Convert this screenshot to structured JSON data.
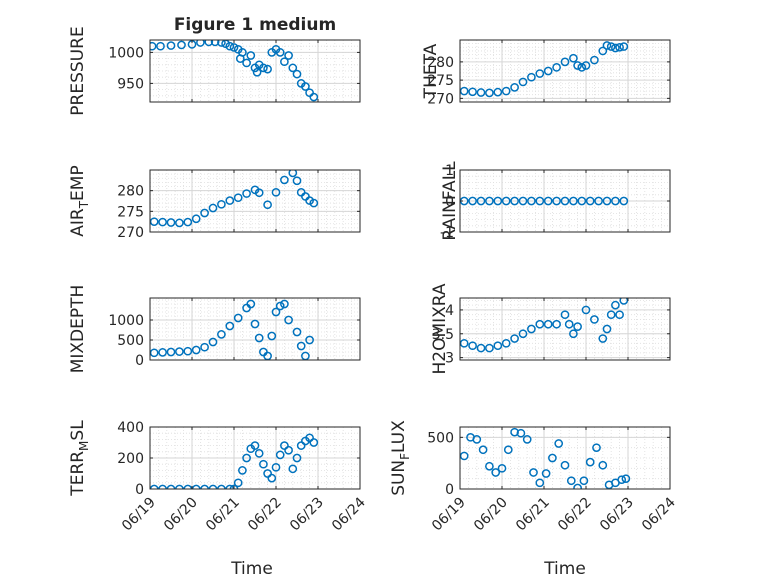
{
  "figure": {
    "title": "Figure 1 medium",
    "marker_color": "#0072BD"
  },
  "chart_data": [
    {
      "type": "scatter",
      "title": "Figure 1 medium",
      "ylabel": "PRESSURE",
      "xlabel": "",
      "xlim": [
        0,
        5
      ],
      "ylim": [
        920,
        1020
      ],
      "yticks": [
        950,
        1000
      ],
      "xticklabels": [
        "06/19",
        "06/20",
        "06/21",
        "06/22",
        "06/23",
        "06/24"
      ],
      "xlabel_visible": false,
      "series": [
        {
          "x": [
            0.05,
            0.25,
            0.5,
            0.75,
            1.0,
            1.2,
            1.4,
            1.55,
            1.7,
            1.8,
            1.9,
            2.0,
            2.1,
            2.15,
            2.2,
            2.3,
            2.4,
            2.5,
            2.55,
            2.6,
            2.7,
            2.8,
            2.9,
            3.0,
            3.1,
            3.2,
            3.3,
            3.4,
            3.5,
            3.6,
            3.7,
            3.8,
            3.9
          ],
          "y": [
            1010,
            1010,
            1011,
            1012,
            1013,
            1016,
            1017,
            1017,
            1016,
            1014,
            1010,
            1008,
            1005,
            990,
            1000,
            983,
            995,
            975,
            968,
            980,
            975,
            973,
            1000,
            1005,
            1000,
            985,
            995,
            975,
            965,
            950,
            945,
            935,
            928
          ]
        }
      ]
    },
    {
      "type": "scatter",
      "title": "",
      "ylabel": "THETA",
      "xlabel": "",
      "xlim": [
        0,
        5
      ],
      "ylim": [
        269,
        286
      ],
      "yticks": [
        270,
        275,
        280
      ],
      "xticklabels": [
        "06/19",
        "06/20",
        "06/21",
        "06/22",
        "06/23",
        "06/24"
      ],
      "xlabel_visible": false,
      "series": [
        {
          "x": [
            0.1,
            0.3,
            0.5,
            0.7,
            0.9,
            1.1,
            1.3,
            1.5,
            1.7,
            1.9,
            2.1,
            2.3,
            2.5,
            2.7,
            2.8,
            2.9,
            3.0,
            3.2,
            3.4,
            3.5,
            3.6,
            3.7,
            3.8,
            3.9
          ],
          "y": [
            272,
            271.8,
            271.6,
            271.5,
            271.7,
            272,
            273,
            274.5,
            275.8,
            276.8,
            277.5,
            278.5,
            280,
            281,
            279,
            278.5,
            279,
            280.5,
            283,
            284.5,
            284.2,
            283.8,
            284,
            284.2
          ]
        }
      ]
    },
    {
      "type": "scatter",
      "title": "",
      "ylabel": "AIR_TEMP",
      "xlabel": "",
      "xlim": [
        0,
        5
      ],
      "ylim": [
        270,
        285
      ],
      "yticks": [
        270,
        275,
        280
      ],
      "xticklabels": [
        "06/19",
        "06/20",
        "06/21",
        "06/22",
        "06/23",
        "06/24"
      ],
      "xlabel_visible": false,
      "series": [
        {
          "x": [
            0.1,
            0.3,
            0.5,
            0.7,
            0.9,
            1.1,
            1.3,
            1.5,
            1.7,
            1.9,
            2.1,
            2.3,
            2.5,
            2.6,
            2.8,
            3.0,
            3.2,
            3.4,
            3.5,
            3.6,
            3.7,
            3.8,
            3.9
          ],
          "y": [
            272.5,
            272.4,
            272.3,
            272.2,
            272.4,
            273.2,
            274.6,
            275.8,
            276.7,
            277.6,
            278.3,
            279.3,
            280.2,
            279.5,
            276.6,
            279.6,
            282.6,
            284.3,
            282.4,
            279.6,
            278.6,
            277.6,
            277
          ]
        }
      ]
    },
    {
      "type": "scatter",
      "title": "",
      "ylabel": "RAINFALL",
      "xlabel": "",
      "xlim": [
        0,
        5
      ],
      "ylim": [
        -1,
        1
      ],
      "yticks": [
        -1,
        0,
        1
      ],
      "xticklabels": [
        "06/19",
        "06/20",
        "06/21",
        "06/22",
        "06/23",
        "06/24"
      ],
      "xlabel_visible": false,
      "series": [
        {
          "x": [
            0.1,
            0.3,
            0.5,
            0.7,
            0.9,
            1.1,
            1.3,
            1.5,
            1.7,
            1.9,
            2.1,
            2.3,
            2.5,
            2.7,
            2.9,
            3.1,
            3.3,
            3.5,
            3.7,
            3.9
          ],
          "y": [
            0,
            0,
            0,
            0,
            0,
            0,
            0,
            0,
            0,
            0,
            0,
            0,
            0,
            0,
            0,
            0,
            0,
            0,
            0,
            0
          ]
        }
      ]
    },
    {
      "type": "scatter",
      "title": "",
      "ylabel": "MIXDEPTH",
      "xlabel": "",
      "xlim": [
        0,
        5
      ],
      "ylim": [
        0,
        1550
      ],
      "yticks": [
        0,
        500,
        1000
      ],
      "xticklabels": [
        "06/19",
        "06/20",
        "06/21",
        "06/22",
        "06/23",
        "06/24"
      ],
      "xlabel_visible": false,
      "series": [
        {
          "x": [
            0.1,
            0.3,
            0.5,
            0.7,
            0.9,
            1.1,
            1.3,
            1.5,
            1.7,
            1.9,
            2.1,
            2.3,
            2.4,
            2.5,
            2.6,
            2.7,
            2.8,
            2.9,
            3.0,
            3.1,
            3.2,
            3.3,
            3.5,
            3.6,
            3.7,
            3.8
          ],
          "y": [
            180,
            190,
            200,
            210,
            220,
            250,
            320,
            450,
            640,
            850,
            1050,
            1300,
            1400,
            900,
            550,
            200,
            100,
            600,
            1200,
            1350,
            1400,
            1000,
            700,
            350,
            100,
            500
          ]
        }
      ]
    },
    {
      "type": "scatter",
      "title": "",
      "ylabel": "H2OMIXRA",
      "xlabel": "",
      "xlim": [
        0,
        5
      ],
      "ylim": [
        2.95,
        4.25
      ],
      "yticks": [
        3,
        3.5,
        4
      ],
      "xticklabels": [
        "06/19",
        "06/20",
        "06/21",
        "06/22",
        "06/23",
        "06/24"
      ],
      "xlabel_visible": false,
      "series": [
        {
          "x": [
            0.1,
            0.3,
            0.5,
            0.7,
            0.9,
            1.1,
            1.3,
            1.5,
            1.7,
            1.9,
            2.1,
            2.3,
            2.5,
            2.6,
            2.7,
            2.8,
            3.0,
            3.2,
            3.4,
            3.5,
            3.6,
            3.7,
            3.8,
            3.9
          ],
          "y": [
            3.3,
            3.25,
            3.2,
            3.2,
            3.25,
            3.3,
            3.4,
            3.5,
            3.6,
            3.7,
            3.7,
            3.7,
            3.9,
            3.7,
            3.5,
            3.65,
            4.0,
            3.8,
            3.4,
            3.6,
            3.9,
            4.1,
            3.9,
            4.2
          ]
        }
      ]
    },
    {
      "type": "scatter",
      "title": "",
      "ylabel": "TERR_MSL",
      "xlabel": "Time",
      "xlim": [
        0,
        5
      ],
      "ylim": [
        0,
        400
      ],
      "yticks": [
        0,
        200,
        400
      ],
      "xticklabels": [
        "06/19",
        "06/20",
        "06/21",
        "06/22",
        "06/23",
        "06/24"
      ],
      "xlabel_visible": true,
      "series": [
        {
          "x": [
            0.1,
            0.3,
            0.5,
            0.7,
            0.9,
            1.1,
            1.3,
            1.5,
            1.7,
            1.9,
            2.0,
            2.1,
            2.2,
            2.3,
            2.4,
            2.5,
            2.6,
            2.7,
            2.8,
            2.9,
            3.0,
            3.1,
            3.2,
            3.3,
            3.4,
            3.5,
            3.6,
            3.7,
            3.8,
            3.9
          ],
          "y": [
            0,
            0,
            0,
            0,
            0,
            0,
            0,
            0,
            0,
            0,
            0,
            40,
            120,
            200,
            260,
            280,
            230,
            160,
            100,
            70,
            140,
            220,
            280,
            250,
            130,
            200,
            280,
            310,
            330,
            300
          ]
        }
      ]
    },
    {
      "type": "scatter",
      "title": "",
      "ylabel": "SUN_FLUX",
      "xlabel": "Time",
      "xlim": [
        0,
        5
      ],
      "ylim": [
        0,
        600
      ],
      "yticks": [
        0,
        500
      ],
      "xticklabels": [
        "06/19",
        "06/20",
        "06/21",
        "06/22",
        "06/23",
        "06/24"
      ],
      "xlabel_visible": true,
      "series": [
        {
          "x": [
            0.1,
            0.25,
            0.4,
            0.55,
            0.7,
            0.85,
            1.0,
            1.15,
            1.3,
            1.45,
            1.6,
            1.75,
            1.9,
            2.05,
            2.2,
            2.35,
            2.5,
            2.65,
            2.8,
            2.95,
            3.1,
            3.25,
            3.4,
            3.55,
            3.7,
            3.85,
            3.95
          ],
          "y": [
            320,
            500,
            480,
            380,
            220,
            160,
            200,
            380,
            550,
            540,
            480,
            160,
            60,
            150,
            300,
            440,
            230,
            80,
            10,
            80,
            260,
            400,
            230,
            40,
            60,
            90,
            100
          ]
        }
      ]
    }
  ]
}
